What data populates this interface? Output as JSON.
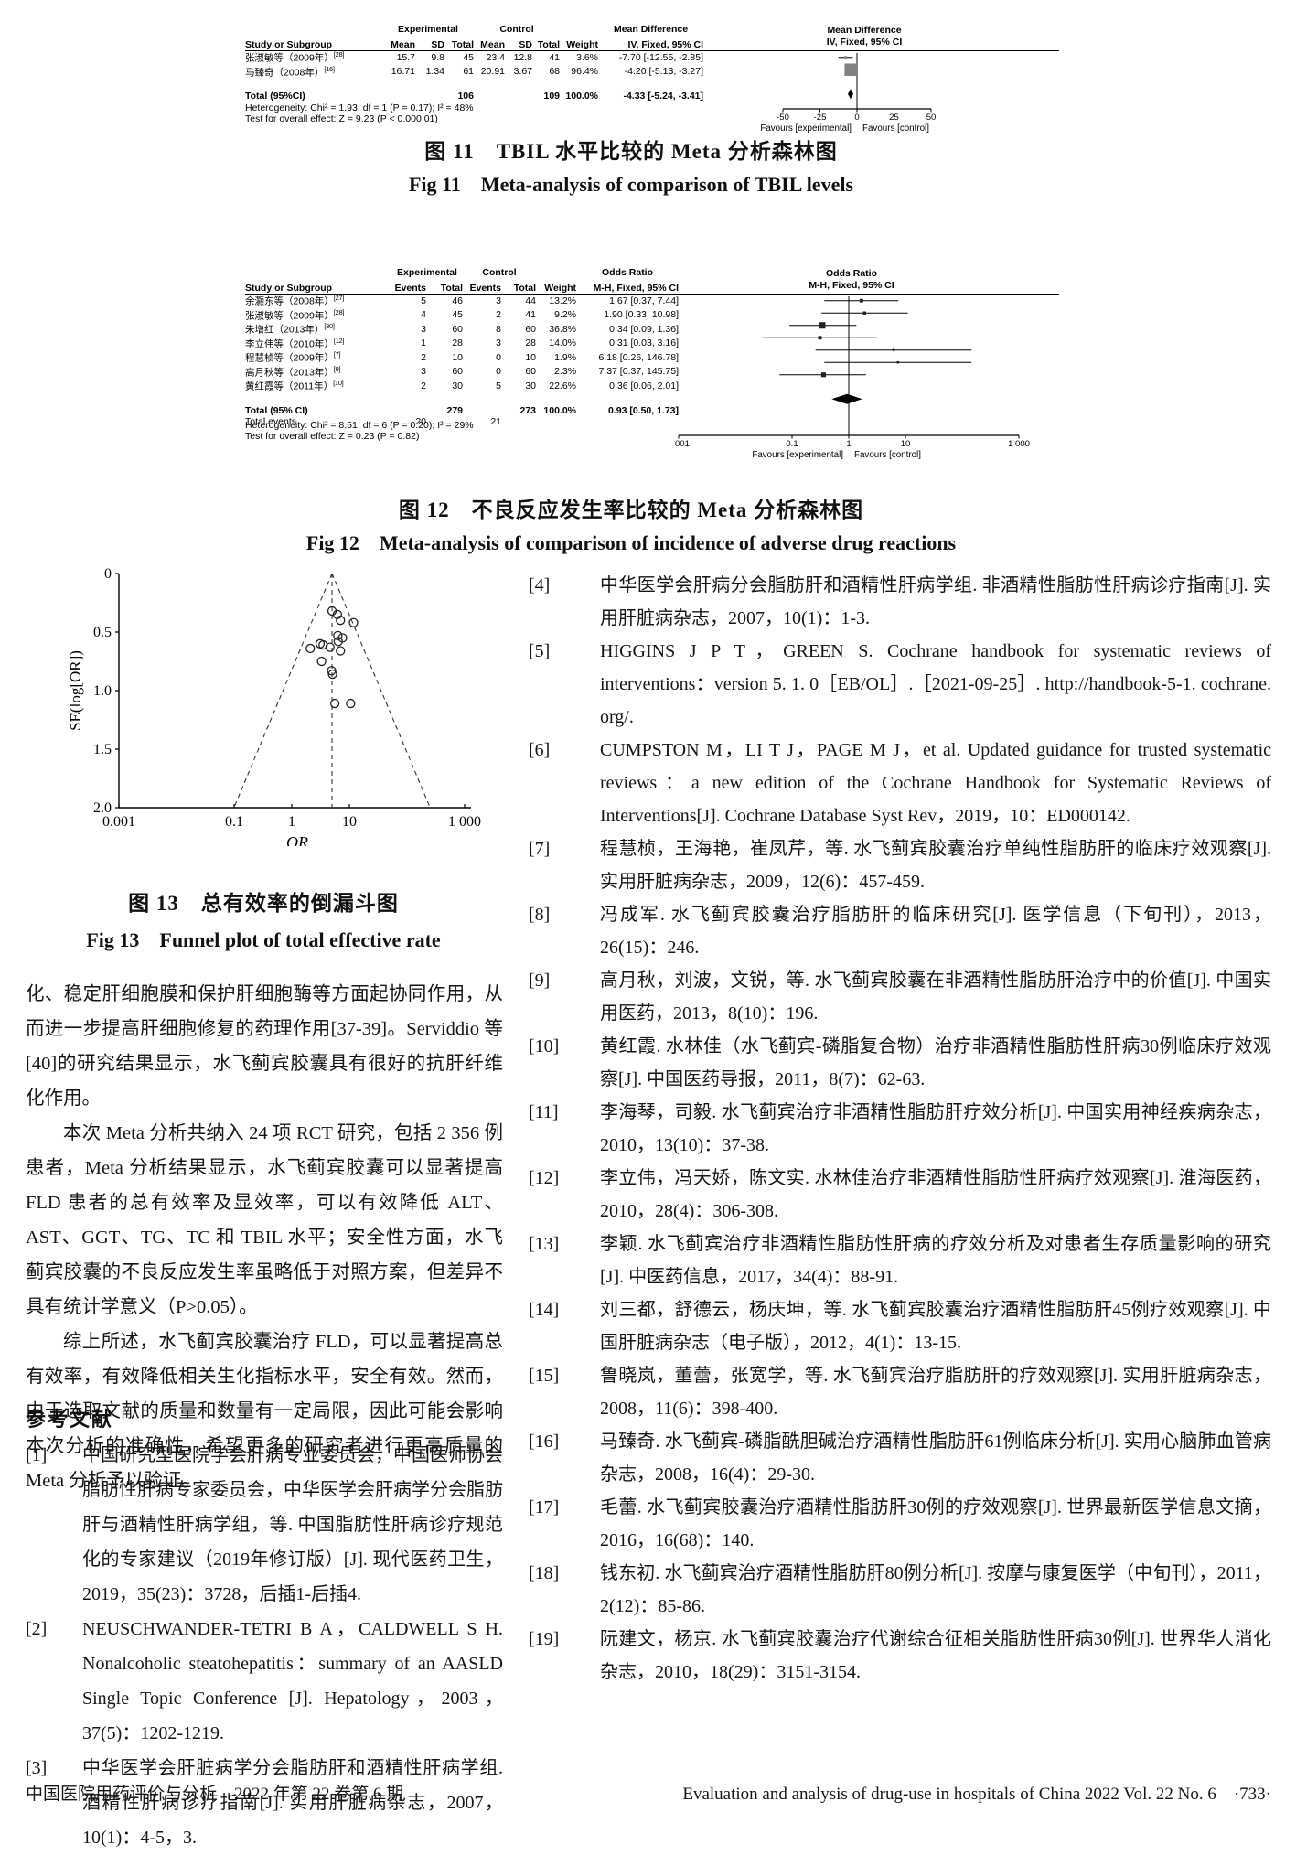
{
  "figure11": {
    "caption_cn": "图 11　TBIL 水平比较的 Meta 分析森林图",
    "caption_en": "Fig 11　Meta-analysis of comparison of TBIL levels",
    "header": {
      "study": "Study or Subgroup",
      "group1": "Experimental",
      "group2": "Control",
      "mean": "Mean",
      "sd": "SD",
      "total": "Total",
      "weight": "Weight",
      "effect_title": "Mean Difference",
      "effect_sub": "IV, Fixed, 95% CI"
    },
    "studies": [
      {
        "name": "张淑敏等（2009年）",
        "ref": "[28]",
        "mean1": "15.7",
        "sd1": "9.8",
        "total1": "45",
        "mean2": "23.4",
        "sd2": "12.8",
        "total2": "41",
        "weight": "3.6%",
        "effect": "-7.70 [-12.55, -2.85]",
        "est": -7.7,
        "lo": -12.55,
        "hi": -2.85,
        "w": 3.6
      },
      {
        "name": "马臻奇（2008年）",
        "ref": "[16]",
        "mean1": "16.71",
        "sd1": "1.34",
        "total1": "61",
        "mean2": "20.91",
        "sd2": "3.67",
        "total2": "68",
        "weight": "96.4%",
        "effect": "-4.20 [-5.13, -3.27]",
        "est": -4.2,
        "lo": -5.13,
        "hi": -3.27,
        "w": 96.4
      }
    ],
    "total": {
      "label": "Total (95%CI)",
      "total1": "106",
      "total2": "109",
      "weight": "100.0%",
      "effect": "-4.33 [-5.24, -3.41]",
      "est": -4.33,
      "lo": -5.24,
      "hi": -3.41
    },
    "heterogeneity": "Heterogeneity: Chi² = 1.93, df = 1 (P = 0.17); I² = 48%",
    "overall_test": "Test for overall effect: Z = 9.23 (P < 0.000 01)",
    "axis": {
      "ticks": [
        -50,
        -25,
        0,
        25,
        50
      ],
      "tick_labels": [
        "-50",
        "-25",
        "0",
        "25",
        "50"
      ],
      "min": -50,
      "max": 50,
      "favours_left": "Favours [experimental]",
      "favours_right": "Favours [control]"
    },
    "chart_type": "forest"
  },
  "figure12": {
    "caption_cn": "图 12　不良反应发生率比较的 Meta 分析森林图",
    "caption_en": "Fig 12　Meta-analysis of comparison of incidence of adverse drug reactions",
    "header": {
      "study": "Study or Subgroup",
      "group1": "Experimental",
      "group2": "Control",
      "events": "Events",
      "total": "Total",
      "weight": "Weight",
      "effect_title": "Odds Ratio",
      "effect_sub": "M-H, Fixed, 95% CI"
    },
    "studies": [
      {
        "name": "余灏东等（2008年）",
        "ref": "[27]",
        "ev1": "5",
        "total1": "46",
        "ev2": "3",
        "total2": "44",
        "weight": "13.2%",
        "effect": "1.67 [0.37, 7.44]",
        "est": 1.67,
        "lo": 0.37,
        "hi": 7.44,
        "w": 13.2
      },
      {
        "name": "张淑敏等（2009年）",
        "ref": "[28]",
        "ev1": "4",
        "total1": "45",
        "ev2": "2",
        "total2": "41",
        "weight": "9.2%",
        "effect": "1.90 [0.33, 10.98]",
        "est": 1.9,
        "lo": 0.33,
        "hi": 10.98,
        "w": 9.2
      },
      {
        "name": "朱增红（2013年）",
        "ref": "[30]",
        "ev1": "3",
        "total1": "60",
        "ev2": "8",
        "total2": "60",
        "weight": "36.8%",
        "effect": "0.34 [0.09, 1.36]",
        "est": 0.34,
        "lo": 0.09,
        "hi": 1.36,
        "w": 36.8
      },
      {
        "name": "李立伟等（2010年）",
        "ref": "[12]",
        "ev1": "1",
        "total1": "28",
        "ev2": "3",
        "total2": "28",
        "weight": "14.0%",
        "effect": "0.31 [0.03, 3.16]",
        "est": 0.31,
        "lo": 0.03,
        "hi": 3.16,
        "w": 14.0
      },
      {
        "name": "程慧桢等（2009年）",
        "ref": "[7]",
        "ev1": "2",
        "total1": "10",
        "ev2": "0",
        "total2": "10",
        "weight": "1.9%",
        "effect": "6.18 [0.26, 146.78]",
        "est": 6.18,
        "lo": 0.26,
        "hi": 146.78,
        "w": 1.9
      },
      {
        "name": "高月秋等（2013年）",
        "ref": "[9]",
        "ev1": "3",
        "total1": "60",
        "ev2": "0",
        "total2": "60",
        "weight": "2.3%",
        "effect": "7.37 [0.37, 145.75]",
        "est": 7.37,
        "lo": 0.37,
        "hi": 145.75,
        "w": 2.3
      },
      {
        "name": "黄红霞等（2011年）",
        "ref": "[10]",
        "ev1": "2",
        "total1": "30",
        "ev2": "5",
        "total2": "30",
        "weight": "22.6%",
        "effect": "0.36 [0.06, 2.01]",
        "est": 0.36,
        "lo": 0.06,
        "hi": 2.01,
        "w": 22.6
      }
    ],
    "total": {
      "label": "Total (95% CI)",
      "total1": "279",
      "total2": "273",
      "weight": "100.0%",
      "effect": "0.93 [0.50, 1.73]",
      "est": 0.93,
      "lo": 0.5,
      "hi": 1.73
    },
    "total_events": {
      "label": "Total events",
      "ev1": "20",
      "ev2": "21"
    },
    "heterogeneity": "Heterogeneity: Chi² = 8.51, df = 6 (P = 0.20); I² = 29%",
    "overall_test": "Test for overall effect: Z = 0.23 (P = 0.82)",
    "axis": {
      "ticks": [
        0.001,
        0.1,
        1,
        10,
        1000
      ],
      "tick_labels": [
        "0.001",
        "0.1",
        "1",
        "10",
        "1 000"
      ],
      "min": 0.001,
      "max": 1000,
      "favours_left": "Favours [experimental]",
      "favours_right": "Favours [control]"
    },
    "chart_type": "forest"
  },
  "figure13": {
    "caption_cn": "图 13　总有效率的倒漏斗图",
    "caption_en": "Fig 13　Funnel plot of total effective rate",
    "chart_type": "funnel-scatter",
    "ylabel": "SE(log[OR])",
    "xlabel": "OR",
    "x_ticks": [
      0.001,
      0.1,
      1,
      10,
      1000
    ],
    "x_tick_labels": [
      "0.001",
      "0.1",
      "1",
      "10",
      "1 000"
    ],
    "y_ticks": [
      0,
      0.5,
      1.0,
      1.5,
      2.0
    ],
    "y_tick_labels": [
      "0",
      "0.5",
      "1.0",
      "1.5",
      "2.0"
    ],
    "center_or": 5,
    "se_max": 2,
    "points": [
      [
        5.0,
        0.32
      ],
      [
        6.2,
        0.35
      ],
      [
        7.0,
        0.4
      ],
      [
        11.8,
        0.42
      ],
      [
        6.3,
        0.53
      ],
      [
        7.6,
        0.55
      ],
      [
        6.4,
        0.58
      ],
      [
        3.1,
        0.6
      ],
      [
        3.5,
        0.61
      ],
      [
        4.6,
        0.63
      ],
      [
        2.1,
        0.64
      ],
      [
        7.0,
        0.66
      ],
      [
        3.3,
        0.75
      ],
      [
        4.9,
        0.83
      ],
      [
        5.1,
        0.86
      ],
      [
        5.6,
        1.11
      ],
      [
        10.5,
        1.11
      ]
    ]
  },
  "body": {
    "p1": "化、稳定肝细胞膜和保护肝细胞酶等方面起协同作用，从而进一步提高肝细胞修复的药理作用[37-39]。Serviddio 等[40]的研究结果显示，水飞蓟宾胶囊具有很好的抗肝纤维化作用。",
    "p2": "本次 Meta 分析共纳入 24 项 RCT 研究，包括 2 356 例患者，Meta 分析结果显示，水飞蓟宾胶囊可以显著提高 FLD 患者的总有效率及显效率，可以有效降低 ALT、AST、GGT、TG、TC 和 TBIL 水平；安全性方面，水飞蓟宾胶囊的不良反应发生率虽略低于对照方案，但差异不具有统计学意义（P>0.05）。",
    "p3": "综上所述，水飞蓟宾胶囊治疗 FLD，可以显著提高总有效率，有效降低相关生化指标水平，安全有效。然而，由于选取文献的质量和数量有一定局限，因此可能会影响本次分析的准确性，希望更多的研究者进行更高质量的 Meta 分析予以验证。"
  },
  "references": {
    "heading": "参考文献",
    "left": [
      {
        "num": "[1]",
        "text": "中国研究型医院学会肝病专业委员会，中国医师协会脂肪性肝病专家委员会，中华医学会肝病学分会脂肪肝与酒精性肝病学组，等. 中国脂肪性肝病诊疗规范化的专家建议（2019年修订版）[J]. 现代医药卫生，2019，35(23)：3728，后插1-后插4."
      },
      {
        "num": "[2]",
        "text": "NEUSCHWANDER-TETRI B A，CALDWELL S H. Nonalcoholic steatohepatitis：summary of an AASLD Single Topic Conference [J]. Hepatology，2003，37(5)：1202-1219."
      },
      {
        "num": "[3]",
        "text": "中华医学会肝脏病学分会脂肪肝和酒精性肝病学组. 酒精性肝病诊疗指南[J]. 实用肝脏病杂志，2007，10(1)：4-5，3."
      }
    ],
    "right": [
      {
        "num": "[4]",
        "text": "中华医学会肝病分会脂肪肝和酒精性肝病学组. 非酒精性脂肪性肝病诊疗指南[J]. 实用肝脏病杂志，2007，10(1)：1-3."
      },
      {
        "num": "[5]",
        "text": "HIGGINS J P T，GREEN S. Cochrane handbook for systematic reviews of interventions：version 5. 1. 0［EB/OL］.［2021-09-25］. http://handbook-5-1. cochrane. org/."
      },
      {
        "num": "[6]",
        "text": "CUMPSTON M，LI T J，PAGE M J，et al. Updated guidance for trusted systematic reviews：a new edition of the Cochrane Handbook for Systematic Reviews of Interventions[J]. Cochrane Database Syst Rev，2019，10：ED000142."
      },
      {
        "num": "[7]",
        "text": "程慧桢，王海艳，崔凤芹，等. 水飞蓟宾胶囊治疗单纯性脂肪肝的临床疗效观察[J]. 实用肝脏病杂志，2009，12(6)：457-459."
      },
      {
        "num": "[8]",
        "text": "冯成军. 水飞蓟宾胶囊治疗脂肪肝的临床研究[J]. 医学信息（下旬刊），2013，26(15)：246."
      },
      {
        "num": "[9]",
        "text": "高月秋，刘波，文锐，等. 水飞蓟宾胶囊在非酒精性脂肪肝治疗中的价值[J]. 中国实用医药，2013，8(10)：196."
      },
      {
        "num": "[10]",
        "text": "黄红霞. 水林佳（水飞蓟宾-磷脂复合物）治疗非酒精性脂肪性肝病30例临床疗效观察[J]. 中国医药导报，2011，8(7)：62-63."
      },
      {
        "num": "[11]",
        "text": "李海琴，司毅. 水飞蓟宾治疗非酒精性脂肪肝疗效分析[J]. 中国实用神经疾病杂志，2010，13(10)：37-38."
      },
      {
        "num": "[12]",
        "text": "李立伟，冯天娇，陈文实. 水林佳治疗非酒精性脂肪性肝病疗效观察[J]. 淮海医药，2010，28(4)：306-308."
      },
      {
        "num": "[13]",
        "text": "李颖. 水飞蓟宾治疗非酒精性脂肪性肝病的疗效分析及对患者生存质量影响的研究[J]. 中医药信息，2017，34(4)：88-91."
      },
      {
        "num": "[14]",
        "text": "刘三都，舒德云，杨庆坤，等. 水飞蓟宾胶囊治疗酒精性脂肪肝45例疗效观察[J]. 中国肝脏病杂志（电子版），2012，4(1)：13-15."
      },
      {
        "num": "[15]",
        "text": "鲁晓岚，董蕾，张宽学，等. 水飞蓟宾治疗脂肪肝的疗效观察[J]. 实用肝脏病杂志，2008，11(6)：398-400."
      },
      {
        "num": "[16]",
        "text": "马臻奇. 水飞蓟宾-磷脂酰胆碱治疗酒精性脂肪肝61例临床分析[J]. 实用心脑肺血管病杂志，2008，16(4)：29-30."
      },
      {
        "num": "[17]",
        "text": "毛蕾. 水飞蓟宾胶囊治疗酒精性脂肪肝30例的疗效观察[J]. 世界最新医学信息文摘，2016，16(68)：140."
      },
      {
        "num": "[18]",
        "text": "钱东初. 水飞蓟宾治疗酒精性脂肪肝80例分析[J]. 按摩与康复医学（中旬刊），2011，2(12)：85-86."
      },
      {
        "num": "[19]",
        "text": "阮建文，杨京. 水飞蓟宾胶囊治疗代谢综合征相关脂肪性肝病30例[J]. 世界华人消化杂志，2010，18(29)：3151-3154."
      }
    ]
  },
  "footer": {
    "left": "中国医院用药评价与分析　2022 年第 22 卷第 6 期",
    "right": "Evaluation and analysis of drug-use in hospitals of China 2022 Vol. 22 No. 6　·733·"
  }
}
